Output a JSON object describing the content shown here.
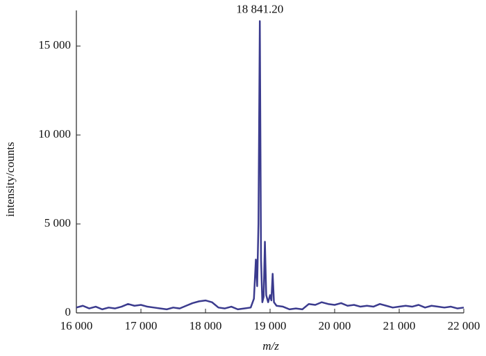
{
  "chart_data": {
    "type": "line",
    "annotation": "18 841.20",
    "xlabel": "m/z",
    "ylabel": "intensity/counts",
    "x": [
      16000,
      16100,
      16200,
      16300,
      16400,
      16500,
      16600,
      16700,
      16800,
      16900,
      17000,
      17100,
      17200,
      17300,
      17400,
      17500,
      17600,
      17700,
      17800,
      17900,
      18000,
      18100,
      18200,
      18300,
      18400,
      18500,
      18600,
      18700,
      18750,
      18780,
      18800,
      18820,
      18841.2,
      18860,
      18880,
      18900,
      18920,
      18940,
      18970,
      19000,
      19020,
      19040,
      19060,
      19100,
      19200,
      19300,
      19400,
      19500,
      19600,
      19700,
      19800,
      19900,
      20000,
      20100,
      20200,
      20300,
      20400,
      20500,
      20600,
      20700,
      20800,
      20900,
      21000,
      21100,
      21200,
      21300,
      21400,
      21500,
      21600,
      21700,
      21800,
      21900,
      22000
    ],
    "series": [
      {
        "color": "#3b3b8e",
        "values": [
          300,
          400,
          250,
          350,
          200,
          300,
          250,
          350,
          500,
          400,
          450,
          350,
          300,
          250,
          200,
          300,
          250,
          400,
          550,
          650,
          700,
          600,
          300,
          250,
          350,
          200,
          250,
          300,
          800,
          3000,
          1500,
          5000,
          16400,
          3000,
          600,
          900,
          4000,
          1000,
          600,
          1000,
          700,
          2200,
          600,
          400,
          350,
          200,
          250,
          200,
          500,
          450,
          600,
          500,
          450,
          550,
          400,
          450,
          350,
          400,
          350,
          500,
          400,
          300,
          350,
          400,
          350,
          450,
          300,
          400,
          350,
          300,
          350,
          250,
          300
        ]
      }
    ],
    "xlim": [
      16000,
      22000
    ],
    "ylim": [
      0,
      17000
    ],
    "xticks": [
      {
        "value": 16000,
        "label": "16 000"
      },
      {
        "value": 17000,
        "label": "17 000"
      },
      {
        "value": 18000,
        "label": "18 000"
      },
      {
        "value": 19000,
        "label": "19 000"
      },
      {
        "value": 20000,
        "label": "20 000"
      },
      {
        "value": 21000,
        "label": "21 000"
      },
      {
        "value": 22000,
        "label": "22 000"
      }
    ],
    "yticks": [
      0,
      {
        "value": 5000,
        "label": "5 000"
      },
      {
        "value": 10000,
        "label": "10 000"
      },
      {
        "value": 15000,
        "label": "15 000"
      }
    ]
  }
}
